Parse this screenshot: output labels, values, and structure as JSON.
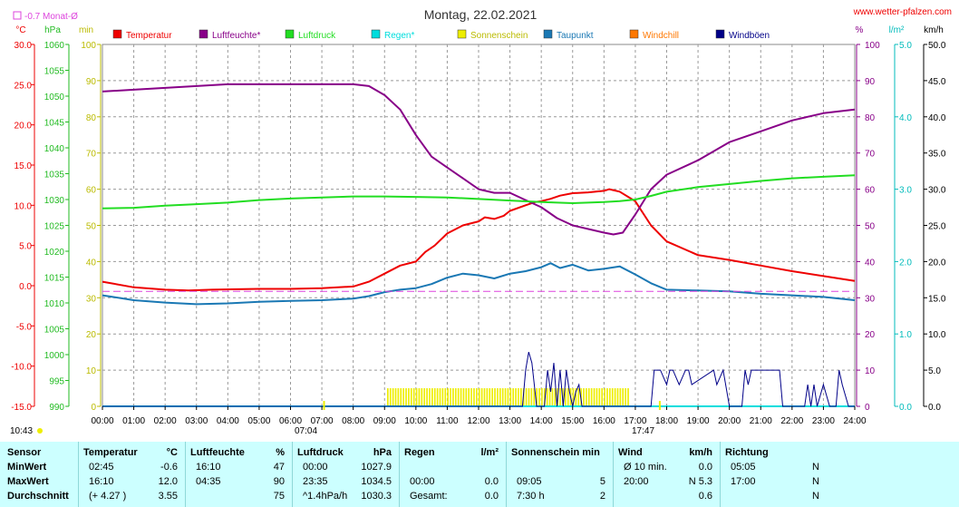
{
  "header": {
    "title": "Montag, 22.02.2021",
    "site": "www.wetter-pfalzen.com",
    "avg_note": "-0.7 Monat-Ø",
    "sunrise": "07:04",
    "sunset": "17:47",
    "time_left": "10:43"
  },
  "colors": {
    "temperature": "#ee0000",
    "humidity": "#880088",
    "pressure": "#22dd22",
    "rain": "#00dddd",
    "sunshine": "#eeee00",
    "dewpoint": "#1a78b4",
    "windchill": "#ff7700",
    "gusts": "#000088",
    "monthavg": "#dd44dd"
  },
  "chart_data": {
    "type": "line",
    "x_ticks": [
      "00:00",
      "01:00",
      "02:00",
      "03:00",
      "04:00",
      "05:00",
      "06:00",
      "07:00",
      "08:00",
      "09:00",
      "10:00",
      "11:00",
      "12:00",
      "13:00",
      "14:00",
      "15:00",
      "16:00",
      "17:00",
      "18:00",
      "19:00",
      "20:00",
      "21:00",
      "22:00",
      "23:00",
      "24:00"
    ],
    "xlim": [
      0,
      24
    ],
    "axes": {
      "temperature": {
        "unit": "°C",
        "ylim": [
          -15,
          30
        ],
        "ticks": [
          "30.0",
          "25.0",
          "20.0",
          "15.0",
          "10.0",
          "5.0",
          "0.0",
          "-5.0",
          "-10.0",
          "-15.0"
        ]
      },
      "pressure": {
        "unit": "hPa",
        "ylim": [
          990,
          1060
        ],
        "ticks": [
          "1060",
          "1055",
          "1050",
          "1045",
          "1040",
          "1035",
          "1030",
          "1025",
          "1020",
          "1015",
          "1010",
          "1005",
          "1000",
          "995",
          "990"
        ]
      },
      "sunshine": {
        "unit": "min",
        "ylim": [
          0,
          100
        ],
        "ticks": [
          "100",
          "90",
          "80",
          "70",
          "60",
          "50",
          "40",
          "30",
          "20",
          "10",
          "0"
        ]
      },
      "humidity": {
        "unit": "%",
        "ylim": [
          0,
          100
        ],
        "ticks": [
          "100",
          "90",
          "80",
          "70",
          "60",
          "50",
          "40",
          "30",
          "20",
          "10",
          "0"
        ]
      },
      "rain": {
        "unit": "l/m²",
        "ylim": [
          0,
          5
        ],
        "ticks": [
          "5.0",
          "4.0",
          "3.0",
          "2.0",
          "1.0",
          "0.0"
        ]
      },
      "wind": {
        "unit": "km/h",
        "ylim": [
          0,
          50
        ],
        "ticks": [
          "50.0",
          "45.0",
          "40.0",
          "35.0",
          "30.0",
          "25.0",
          "20.0",
          "15.0",
          "10.0",
          "5.0",
          "0.0"
        ]
      }
    },
    "legend": [
      {
        "key": "temperature",
        "label": "Temperatur"
      },
      {
        "key": "humidity",
        "label": "Luftfeuchte*"
      },
      {
        "key": "pressure",
        "label": "Luftdruck"
      },
      {
        "key": "rain",
        "label": "Regen*"
      },
      {
        "key": "sunshine",
        "label": "Sonnenschein"
      },
      {
        "key": "dewpoint",
        "label": "Taupunkt"
      },
      {
        "key": "windchill",
        "label": "Windchill"
      },
      {
        "key": "gusts",
        "label": "Windböen"
      }
    ],
    "series": [
      {
        "key": "temperature",
        "axis": "temperature",
        "x": [
          0,
          1,
          2,
          2.75,
          3.5,
          5,
          6,
          7,
          8,
          8.5,
          9,
          9.5,
          10,
          10.3,
          10.6,
          11,
          11.5,
          12,
          12.2,
          12.5,
          12.8,
          13,
          13.5,
          13.8,
          14,
          14.3,
          14.6,
          15,
          15.5,
          16,
          16.17,
          16.5,
          17,
          17.5,
          18,
          19,
          20,
          21,
          22,
          23,
          24
        ],
        "y": [
          0.5,
          -0.2,
          -0.5,
          -0.6,
          -0.5,
          -0.4,
          -0.4,
          -0.3,
          -0.1,
          0.5,
          1.5,
          2.5,
          3,
          4.2,
          5,
          6.5,
          7.5,
          8,
          8.5,
          8.3,
          8.7,
          9.3,
          10,
          10.4,
          10.5,
          10.8,
          11.2,
          11.5,
          11.6,
          11.8,
          12,
          11.7,
          10.5,
          7.5,
          5.5,
          3.8,
          3.2,
          2.5,
          1.8,
          1.2,
          0.6
        ]
      },
      {
        "key": "humidity",
        "axis": "humidity",
        "x": [
          0,
          1,
          2,
          3,
          4,
          5,
          6,
          7,
          8,
          8.5,
          9,
          9.5,
          10,
          10.5,
          11,
          11.5,
          12,
          12.5,
          13,
          13.5,
          14,
          14.5,
          15,
          15.5,
          16,
          16.3,
          16.6,
          17,
          17.5,
          18,
          19,
          20,
          21,
          22,
          23,
          24
        ],
        "y": [
          87,
          87.5,
          88,
          88.5,
          89,
          89,
          89,
          89,
          89,
          88.5,
          86,
          82,
          75,
          69,
          66,
          63,
          60,
          59,
          59,
          57,
          55,
          52,
          50,
          49,
          48,
          47.5,
          48,
          53,
          60,
          64,
          68,
          73,
          76,
          79,
          81,
          82
        ]
      },
      {
        "key": "pressure",
        "axis": "pressure",
        "x": [
          0,
          1,
          2,
          3,
          4,
          5,
          6,
          7,
          8,
          9,
          10,
          11,
          12,
          13,
          14,
          15,
          16,
          16.5,
          17,
          17.5,
          18,
          19,
          20,
          21,
          22,
          23,
          24
        ],
        "y": [
          1028.3,
          1028.4,
          1028.8,
          1029.1,
          1029.4,
          1029.9,
          1030.2,
          1030.4,
          1030.6,
          1030.6,
          1030.5,
          1030.4,
          1030.1,
          1029.8,
          1029.5,
          1029.3,
          1029.5,
          1029.7,
          1030.0,
          1030.7,
          1031.5,
          1032.4,
          1033.0,
          1033.6,
          1034.1,
          1034.4,
          1034.7
        ]
      },
      {
        "key": "dewpoint",
        "axis": "temperature",
        "x": [
          0,
          1,
          2,
          3,
          4,
          5,
          6,
          7,
          8,
          8.5,
          9,
          9.5,
          10,
          10.5,
          11,
          11.5,
          12,
          12.5,
          13,
          13.5,
          14,
          14.3,
          14.6,
          15,
          15.5,
          16,
          16.5,
          17,
          17.5,
          18,
          19,
          20,
          21,
          22,
          23,
          24
        ],
        "y": [
          -1.2,
          -1.8,
          -2.1,
          -2.3,
          -2.2,
          -2.0,
          -1.9,
          -1.8,
          -1.6,
          -1.3,
          -0.8,
          -0.5,
          -0.3,
          0.2,
          1.0,
          1.5,
          1.3,
          0.9,
          1.5,
          1.8,
          2.3,
          2.8,
          2.2,
          2.6,
          1.9,
          2.1,
          2.4,
          1.4,
          0.3,
          -0.5,
          -0.6,
          -0.7,
          -1.0,
          -1.2,
          -1.4,
          -1.8
        ]
      },
      {
        "key": "monthavg",
        "axis": "temperature",
        "x": [
          0,
          24
        ],
        "y": [
          -0.7,
          -0.7
        ]
      },
      {
        "key": "rain",
        "axis": "rain",
        "x": [
          0,
          24
        ],
        "y": [
          0,
          0
        ]
      }
    ],
    "gusts": {
      "axis": "wind",
      "x": [
        0,
        13.4,
        13.5,
        13.6,
        13.7,
        13.8,
        13.85,
        14.1,
        14.2,
        14.3,
        14.4,
        14.5,
        14.6,
        14.7,
        14.8,
        14.9,
        15,
        15.1,
        15.2,
        15.3,
        15.4,
        17.5,
        17.6,
        17.8,
        18,
        18.1,
        18.2,
        18.4,
        18.6,
        18.7,
        18.8,
        19.5,
        19.6,
        19.8,
        20,
        20.4,
        20.5,
        20.6,
        20.7,
        21.6,
        21.7,
        22.4,
        22.5,
        22.6,
        22.7,
        22.8,
        23.0,
        23.2,
        23.4,
        23.5,
        23.6,
        23.8,
        24
      ],
      "y": [
        0,
        0,
        5,
        7.5,
        6,
        2,
        0,
        0,
        5,
        2,
        6,
        0,
        5,
        0,
        5,
        2,
        0,
        2,
        3,
        0,
        0,
        0,
        5,
        5,
        3,
        5,
        5,
        3,
        5,
        5,
        3,
        5,
        3,
        5,
        0,
        0,
        5,
        3,
        5,
        5,
        0,
        0,
        3,
        0,
        3,
        0,
        3,
        0,
        0,
        5,
        3,
        0,
        0
      ]
    },
    "sunshine_bars": {
      "axis": "sunshine",
      "from": 9.08,
      "to": 16.83,
      "value": 5
    }
  },
  "stats": {
    "sensor": {
      "title": "Sensor",
      "rows": [
        "MinWert",
        "MaxWert",
        "Durchschnitt"
      ]
    },
    "temperature": {
      "title": "Temperatur",
      "unit": "°C",
      "rows": [
        [
          "02:45",
          "-0.6"
        ],
        [
          "16:10",
          "12.0"
        ],
        [
          "(+ 4.27 )",
          "3.55"
        ]
      ]
    },
    "humidity": {
      "title": "Luftfeuchte",
      "unit": "%",
      "rows": [
        [
          "16:10",
          "47"
        ],
        [
          "04:35",
          "90"
        ],
        [
          "",
          "75"
        ]
      ]
    },
    "pressure": {
      "title": "Luftdruck",
      "unit": "hPa",
      "rows": [
        [
          "00:00",
          "1027.9"
        ],
        [
          "23:35",
          "1034.5"
        ],
        [
          "^1.4hPa/h",
          "1030.3"
        ]
      ]
    },
    "rain": {
      "title": "Regen",
      "unit": "l/m²",
      "rows": [
        [
          "",
          ""
        ],
        [
          "00:00",
          "0.0"
        ],
        [
          "Gesamt:",
          "0.0"
        ]
      ]
    },
    "sunshine": {
      "title": "Sonnenschein min",
      "unit": "",
      "rows": [
        [
          "",
          ""
        ],
        [
          "09:05",
          "5"
        ],
        [
          "7:30 h",
          "2"
        ]
      ]
    },
    "wind": {
      "title": "Wind",
      "unit": "km/h",
      "rows": [
        [
          "Ø 10 min.",
          "0.0"
        ],
        [
          "20:00",
          "N 5.3"
        ],
        [
          "",
          "0.6"
        ]
      ]
    },
    "direction": {
      "title": "Richtung",
      "unit": "",
      "rows": [
        [
          "05:05",
          "N"
        ],
        [
          "17:00",
          "N"
        ],
        [
          "",
          "N"
        ]
      ]
    }
  }
}
